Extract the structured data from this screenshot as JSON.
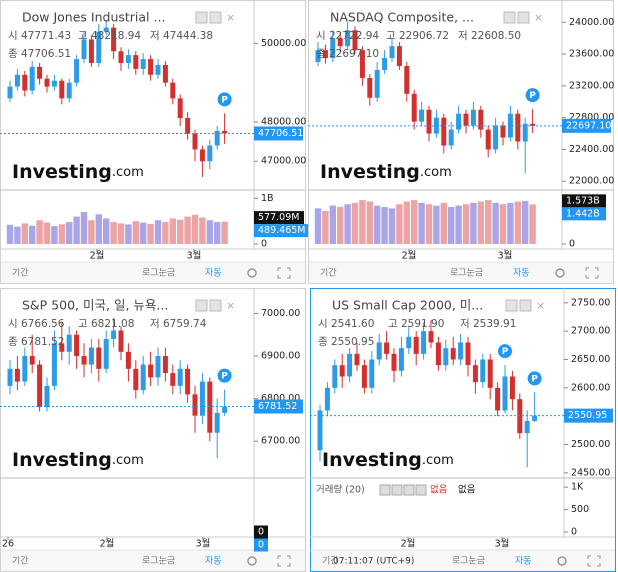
{
  "colors": {
    "up": "#2e9be6",
    "down": "#d32f2f",
    "vol_up": "#aaa5e6",
    "vol_down": "#eba3a3"
  },
  "watermark": [
    "Investing",
    ".com"
  ],
  "panels": [
    {
      "title": "Dow Jones Industrial ...",
      "ohlc": [
        "시 47771.43",
        "고 48218.94",
        "저 47444.38",
        "종 47706.51"
      ],
      "ylim": [
        46370,
        50900
      ],
      "yticks": [
        {
          "value": 50000,
          "label": "50000.00"
        },
        {
          "value": 48000,
          "label": "48000.00"
        },
        {
          "value": 47000,
          "label": "47000.00"
        }
      ],
      "last": {
        "value": 47706.51,
        "label": "47706.51"
      },
      "candles": [
        [
          48600,
          49050,
          48500,
          48900
        ],
        [
          48900,
          49350,
          48800,
          49200
        ],
        [
          49200,
          49300,
          48650,
          48800
        ],
        [
          48800,
          49550,
          48700,
          49400
        ],
        [
          49400,
          49500,
          48950,
          49100
        ],
        [
          49100,
          49200,
          48750,
          48900
        ],
        [
          48900,
          49200,
          48800,
          49050
        ],
        [
          49050,
          49100,
          48450,
          48600
        ],
        [
          48600,
          49100,
          48500,
          49000
        ],
        [
          49000,
          49700,
          48900,
          49600
        ],
        [
          49600,
          50300,
          49500,
          50100
        ],
        [
          50100,
          50200,
          49400,
          49500
        ],
        [
          49500,
          50500,
          49400,
          50300
        ],
        [
          50300,
          50600,
          50200,
          50400
        ],
        [
          50400,
          50500,
          49600,
          49800
        ],
        [
          49800,
          49900,
          49300,
          49500
        ],
        [
          49500,
          49850,
          49350,
          49700
        ],
        [
          49700,
          49800,
          49200,
          49350
        ],
        [
          49350,
          49750,
          49200,
          49600
        ],
        [
          49600,
          49700,
          49050,
          49200
        ],
        [
          49200,
          49600,
          49100,
          49450
        ],
        [
          49450,
          49550,
          48900,
          49000
        ],
        [
          49000,
          49100,
          48450,
          48600
        ],
        [
          48600,
          48700,
          47900,
          48100
        ],
        [
          48100,
          48250,
          47550,
          47700
        ],
        [
          47700,
          47800,
          47000,
          47300
        ],
        [
          47300,
          47400,
          46600,
          47000
        ],
        [
          47000,
          47550,
          46800,
          47400
        ],
        [
          47400,
          47900,
          47300,
          47771.43
        ],
        [
          47771.43,
          48218.94,
          47444.38,
          47706.51
        ]
      ],
      "badges": [
        "P"
      ],
      "volume": [
        420,
        380,
        450,
        400,
        520,
        470,
        390,
        430,
        480,
        600,
        700,
        520,
        650,
        560,
        480,
        450,
        430,
        500,
        470,
        440,
        520,
        480,
        560,
        530,
        600,
        640,
        580,
        520,
        480,
        489.465
      ],
      "vlim": [
        0,
        1050
      ],
      "vticks": [
        {
          "value": 1000,
          "label": "1B"
        },
        0
      ],
      "vlabels": [
        {
          "value": 577.09,
          "label": "577.09M"
        },
        {
          "value": 489.465,
          "label": "489.465M"
        }
      ],
      "xlabels": [
        "2월",
        "3월"
      ],
      "toolbar": {
        "period": "기간",
        "log": "로그눈금",
        "auto": "자동"
      }
    },
    {
      "title": "NASDAQ Composite, ...",
      "ohlc": [
        "시 22722.94",
        "고 22906.72",
        "저 22608.50",
        "종 22697.10"
      ],
      "ylim": [
        21940,
        24180
      ],
      "yticks": [
        {
          "value": 24000,
          "label": "24000.00"
        },
        {
          "value": 23600,
          "label": "23600.00"
        },
        {
          "value": 23200,
          "label": "23200.00"
        },
        {
          "value": 22800,
          "label": "22800.00"
        },
        {
          "value": 22400,
          "label": "22400.00"
        },
        {
          "value": 22000,
          "label": "22000.00"
        }
      ],
      "last": {
        "value": 22697.1,
        "label": "22697.10"
      },
      "candles": [
        [
          23500,
          23750,
          23450,
          23650
        ],
        [
          23650,
          23720,
          23480,
          23550
        ],
        [
          23550,
          23900,
          23500,
          23800
        ],
        [
          23800,
          23880,
          23620,
          23700
        ],
        [
          23700,
          24000,
          23650,
          23900
        ],
        [
          23900,
          23950,
          23600,
          23650
        ],
        [
          23650,
          23700,
          23200,
          23300
        ],
        [
          23300,
          23350,
          22950,
          23050
        ],
        [
          23050,
          23500,
          23000,
          23400
        ],
        [
          23400,
          23650,
          23350,
          23550
        ],
        [
          23550,
          23800,
          23500,
          23700
        ],
        [
          23700,
          23750,
          23400,
          23450
        ],
        [
          23450,
          23500,
          23000,
          23100
        ],
        [
          23100,
          23150,
          22650,
          22750
        ],
        [
          22750,
          23000,
          22700,
          22900
        ],
        [
          22900,
          22950,
          22500,
          22600
        ],
        [
          22600,
          22900,
          22550,
          22800
        ],
        [
          22800,
          22850,
          22350,
          22450
        ],
        [
          22450,
          22750,
          22400,
          22650
        ],
        [
          22650,
          22950,
          22600,
          22850
        ],
        [
          22850,
          22900,
          22600,
          22700
        ],
        [
          22700,
          23000,
          22650,
          22900
        ],
        [
          22900,
          22950,
          22550,
          22650
        ],
        [
          22650,
          22700,
          22300,
          22400
        ],
        [
          22400,
          22800,
          22350,
          22700
        ],
        [
          22700,
          22750,
          22450,
          22550
        ],
        [
          22550,
          22950,
          22500,
          22850
        ],
        [
          22850,
          22900,
          22400,
          22500
        ],
        [
          22500,
          22800,
          22100,
          22722.94
        ],
        [
          22722.94,
          22906.72,
          22608.5,
          22697.1
        ]
      ],
      "badges": [
        "P"
      ],
      "volume": [
        1.3,
        1.2,
        1.4,
        1.35,
        1.45,
        1.5,
        1.6,
        1.55,
        1.4,
        1.35,
        1.3,
        1.45,
        1.55,
        1.6,
        1.5,
        1.45,
        1.4,
        1.5,
        1.35,
        1.4,
        1.45,
        1.5,
        1.55,
        1.6,
        1.5,
        1.45,
        1.5,
        1.55,
        1.573,
        1.442
      ],
      "vlim": [
        0,
        1.75
      ],
      "vticks": [
        0
      ],
      "vlabels": [
        {
          "value": 1.573,
          "label": "1.573B"
        },
        {
          "value": 1.442,
          "label": "1.442B"
        }
      ],
      "xlabels": [
        "2월",
        "3월"
      ],
      "toolbar": {
        "period": "기간",
        "log": "로그눈금",
        "auto": "자동"
      }
    },
    {
      "title": "S&P 500, 미국, 일, 뉴욕...",
      "ohlc": [
        "시 6766.56",
        "고 6821.08",
        "저 6759.74",
        "종 6781.52"
      ],
      "ylim": [
        6623,
        7041
      ],
      "yticks": [
        {
          "value": 7000,
          "label": "7000.00"
        },
        {
          "value": 6900,
          "label": "6900.00"
        },
        {
          "value": 6800,
          "label": "6800.00"
        },
        {
          "value": 6700,
          "label": "6700.00"
        }
      ],
      "last": {
        "value": 6781.52,
        "label": "6781.52"
      },
      "candles": [
        [
          6830,
          6890,
          6810,
          6870
        ],
        [
          6870,
          6900,
          6820,
          6840
        ],
        [
          6840,
          6920,
          6830,
          6900
        ],
        [
          6900,
          6950,
          6860,
          6880
        ],
        [
          6880,
          6890,
          6770,
          6780
        ],
        [
          6780,
          6850,
          6770,
          6830
        ],
        [
          6830,
          6960,
          6820,
          6930
        ],
        [
          6930,
          6980,
          6890,
          6910
        ],
        [
          6910,
          6970,
          6880,
          6950
        ],
        [
          6950,
          6960,
          6870,
          6900
        ],
        [
          6900,
          6930,
          6850,
          6880
        ],
        [
          6880,
          6940,
          6860,
          6920
        ],
        [
          6920,
          6940,
          6840,
          6870
        ],
        [
          6870,
          6960,
          6860,
          6940
        ],
        [
          6940,
          6990,
          6920,
          6960
        ],
        [
          6960,
          6970,
          6890,
          6910
        ],
        [
          6910,
          6930,
          6840,
          6870
        ],
        [
          6870,
          6890,
          6800,
          6820
        ],
        [
          6820,
          6900,
          6810,
          6880
        ],
        [
          6880,
          6910,
          6830,
          6850
        ],
        [
          6850,
          6920,
          6830,
          6900
        ],
        [
          6900,
          6920,
          6840,
          6860
        ],
        [
          6860,
          6880,
          6810,
          6830
        ],
        [
          6830,
          6890,
          6810,
          6870
        ],
        [
          6870,
          6880,
          6790,
          6810
        ],
        [
          6810,
          6830,
          6720,
          6760
        ],
        [
          6760,
          6860,
          6740,
          6840
        ],
        [
          6840,
          6850,
          6700,
          6720
        ],
        [
          6720,
          6800,
          6660,
          6766.56
        ],
        [
          6766.56,
          6821.08,
          6759.74,
          6781.52
        ]
      ],
      "badges": [
        "P"
      ],
      "vlim": [
        0,
        1
      ],
      "vticks": [],
      "vlabels": [
        {
          "value": 0,
          "label": "0"
        },
        {
          "value": 0,
          "label": "0"
        }
      ],
      "xlabels": [
        "26",
        "2월",
        "3월"
      ],
      "toolbar": {
        "period": "기간",
        "log": "로그눈금",
        "auto": "자동"
      }
    },
    {
      "title": "US Small Cap 2000, 미...",
      "ohlc": [
        "시 2541.60",
        "고 2591.90",
        "저 2539.91",
        "종 2550.95"
      ],
      "ylim": [
        2448,
        2762
      ],
      "yticks": [
        {
          "value": 2750,
          "label": "2750.00"
        },
        {
          "value": 2700,
          "label": "2700.00"
        },
        {
          "value": 2650,
          "label": "2650.00"
        },
        {
          "value": 2600,
          "label": "2600.00"
        },
        {
          "value": 2500,
          "label": "2500.00"
        },
        {
          "value": 2450,
          "label": "2450.00"
        }
      ],
      "last": {
        "value": 2550.95,
        "label": "2550.95"
      },
      "candles": [
        [
          2490,
          2570,
          2470,
          2560
        ],
        [
          2560,
          2610,
          2550,
          2600
        ],
        [
          2600,
          2650,
          2590,
          2640
        ],
        [
          2640,
          2660,
          2600,
          2620
        ],
        [
          2620,
          2670,
          2610,
          2660
        ],
        [
          2660,
          2680,
          2630,
          2640
        ],
        [
          2640,
          2650,
          2590,
          2600
        ],
        [
          2600,
          2665,
          2590,
          2650
        ],
        [
          2650,
          2695,
          2640,
          2680
        ],
        [
          2680,
          2700,
          2650,
          2660
        ],
        [
          2660,
          2670,
          2610,
          2630
        ],
        [
          2630,
          2690,
          2620,
          2670
        ],
        [
          2670,
          2710,
          2660,
          2690
        ],
        [
          2690,
          2700,
          2640,
          2660
        ],
        [
          2660,
          2715,
          2650,
          2700
        ],
        [
          2700,
          2720,
          2670,
          2680
        ],
        [
          2680,
          2690,
          2630,
          2640
        ],
        [
          2640,
          2685,
          2630,
          2670
        ],
        [
          2670,
          2690,
          2640,
          2650
        ],
        [
          2650,
          2695,
          2640,
          2680
        ],
        [
          2680,
          2690,
          2620,
          2640
        ],
        [
          2640,
          2650,
          2590,
          2610
        ],
        [
          2610,
          2660,
          2600,
          2650
        ],
        [
          2650,
          2660,
          2580,
          2600
        ],
        [
          2600,
          2610,
          2550,
          2560
        ],
        [
          2560,
          2640,
          2555,
          2620
        ],
        [
          2620,
          2630,
          2560,
          2580
        ],
        [
          2580,
          2590,
          2510,
          2520
        ],
        [
          2520,
          2560,
          2460,
          2541.6
        ],
        [
          2541.6,
          2591.9,
          2539.91,
          2550.95
        ]
      ],
      "badges": [
        "P",
        "P"
      ],
      "vlim": [
        0,
        1070
      ],
      "vticks": [
        {
          "value": 1000,
          "label": "1K"
        },
        500,
        0
      ],
      "vpane": {
        "name": "거래량 (20)",
        "a": "없음",
        "b": "없음"
      },
      "xlabels": [
        "2월",
        "3월"
      ],
      "toolbar": {
        "period": "기간",
        "time": "07:11:07 (UTC+9)",
        "log": "로그눈금",
        "auto": "자동"
      }
    }
  ]
}
